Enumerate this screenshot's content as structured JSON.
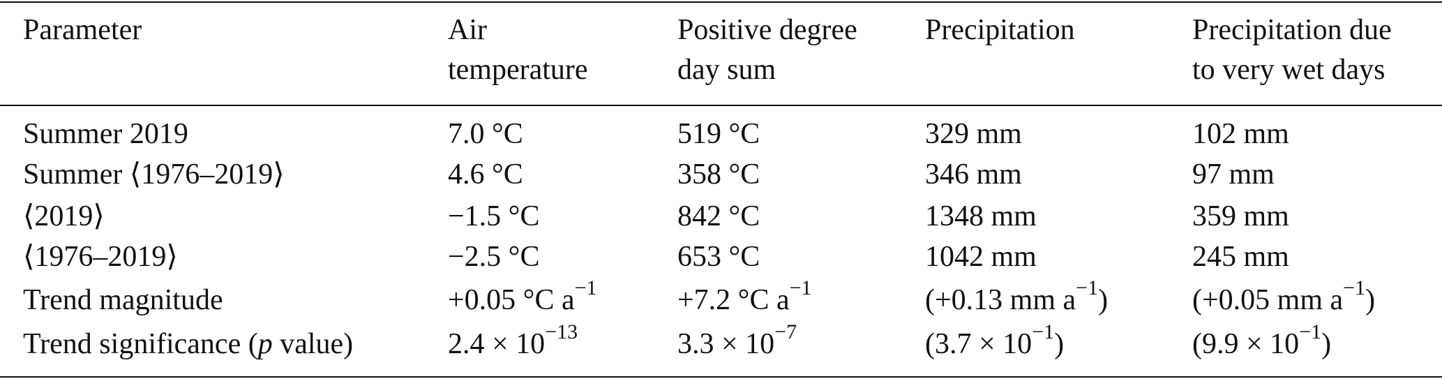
{
  "table": {
    "header": [
      [
        "Parameter"
      ],
      [
        "Air",
        "temperature"
      ],
      [
        "Positive degree",
        "day sum"
      ],
      [
        "Precipitation"
      ],
      [
        "Precipitation due",
        "to very wet days"
      ]
    ],
    "rows": [
      [
        "Summer 2019",
        "7.0 °C",
        "519 °C",
        "329 mm",
        "102 mm"
      ],
      [
        "Summer ⟨1976–2019⟩",
        "4.6 °C",
        "358 °C",
        "346 mm",
        "97 mm"
      ],
      [
        "⟨2019⟩",
        "−1.5 °C",
        "842 °C",
        "1348 mm",
        "359 mm"
      ],
      [
        "⟨1976–2019⟩",
        "−2.5 °C",
        "653 °C",
        "1042 mm",
        "245 mm"
      ],
      [
        "Trend magnitude",
        {
          "text": "+0.05 °C a",
          "sup": "−1"
        },
        {
          "text": "+7.2 °C a",
          "sup": "−1"
        },
        {
          "text": "(+0.13 mm a",
          "sup": "−1",
          "after": ")"
        },
        {
          "text": "(+0.05 mm a",
          "sup": "−1",
          "after": ")"
        }
      ],
      [
        {
          "text": "Trend significance (",
          "em": "p",
          "after": " value)"
        },
        {
          "text": "2.4 × 10",
          "sup": "−13"
        },
        {
          "text": "3.3 × 10",
          "sup": "−7"
        },
        {
          "text": "(3.7 × 10",
          "sup": "−1",
          "after": ")"
        },
        {
          "text": "(9.9 × 10",
          "sup": "−1",
          "after": ")"
        }
      ]
    ]
  }
}
